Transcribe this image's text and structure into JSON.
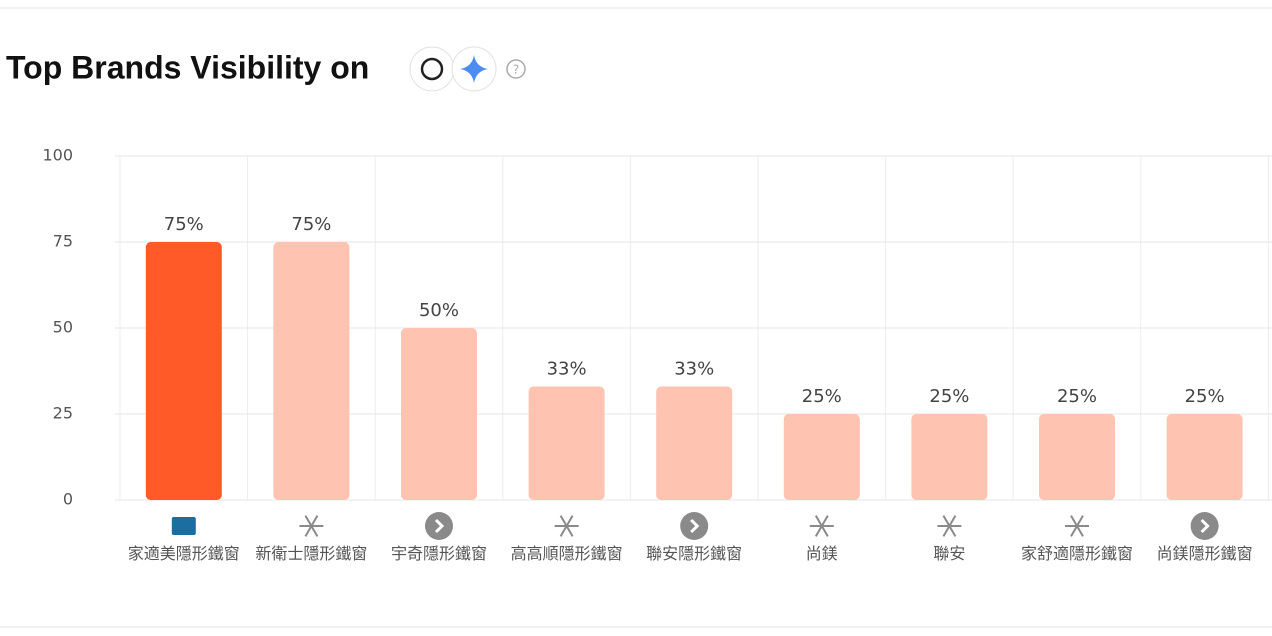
{
  "chart_data": {
    "type": "bar",
    "title": "Top Brands Visibility on",
    "categories": [
      "家適美隱形鐵窗",
      "新衛士隱形鐵窗",
      "宇奇隱形鐵窗",
      "高高順隱形鐵窗",
      "聯安隱形鐵窗",
      "尚鎂",
      "聯安",
      "家舒適隱形鐵窗",
      "尚鎂隱形鐵窗"
    ],
    "values": [
      75,
      75,
      50,
      33,
      33,
      25,
      25,
      25,
      25
    ],
    "value_labels": [
      "75%",
      "75%",
      "50%",
      "33%",
      "33%",
      "25%",
      "25%",
      "25%",
      "25%"
    ],
    "colors": [
      "#ff5a27",
      "#fec3b1",
      "#fec3b1",
      "#fec3b1",
      "#fec3b1",
      "#fec3b1",
      "#fec3b1",
      "#fec3b1",
      "#fec3b1"
    ],
    "ylim": [
      0,
      100
    ],
    "yticks": [
      0,
      25,
      50,
      75,
      100
    ],
    "grid": true
  }
}
